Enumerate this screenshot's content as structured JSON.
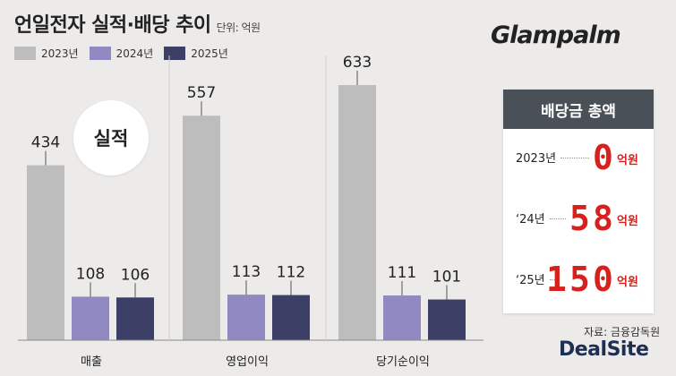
{
  "header": {
    "title": "언일전자 실적·배당 추이",
    "unit": "단위: 억원"
  },
  "brand": "Glampalm",
  "badge": "실적",
  "legend": [
    {
      "label": "2023년",
      "color": "#bdbdbd"
    },
    {
      "label": "2024년",
      "color": "#918ac2"
    },
    {
      "label": "2025년",
      "color": "#3c3f66"
    }
  ],
  "chart_data": {
    "type": "bar",
    "categories": [
      "매출",
      "영업이익",
      "당기순이익"
    ],
    "series": [
      {
        "name": "2023년",
        "values": [
          434,
          557,
          633
        ]
      },
      {
        "name": "2024년",
        "values": [
          108,
          113,
          111
        ]
      },
      {
        "name": "2025년",
        "values": [
          106,
          112,
          101
        ]
      }
    ],
    "ylim": [
      0,
      700
    ],
    "grid": false,
    "legend_position": "top-left"
  },
  "dividend": {
    "title": "배당금 총액",
    "rows": [
      {
        "label": "2023년",
        "value": "0",
        "digits_shown": [
          "0"
        ],
        "unit": "억원"
      },
      {
        "label": "‘24년",
        "value": "58",
        "digits_shown": [
          "5",
          "8"
        ],
        "unit": "억원"
      },
      {
        "label": "‘25년",
        "value": "150",
        "digits_shown": [
          "1",
          "5",
          "0"
        ],
        "unit": "억원"
      }
    ]
  },
  "source": "자료: 금융감독원",
  "publisher": "DealSite"
}
